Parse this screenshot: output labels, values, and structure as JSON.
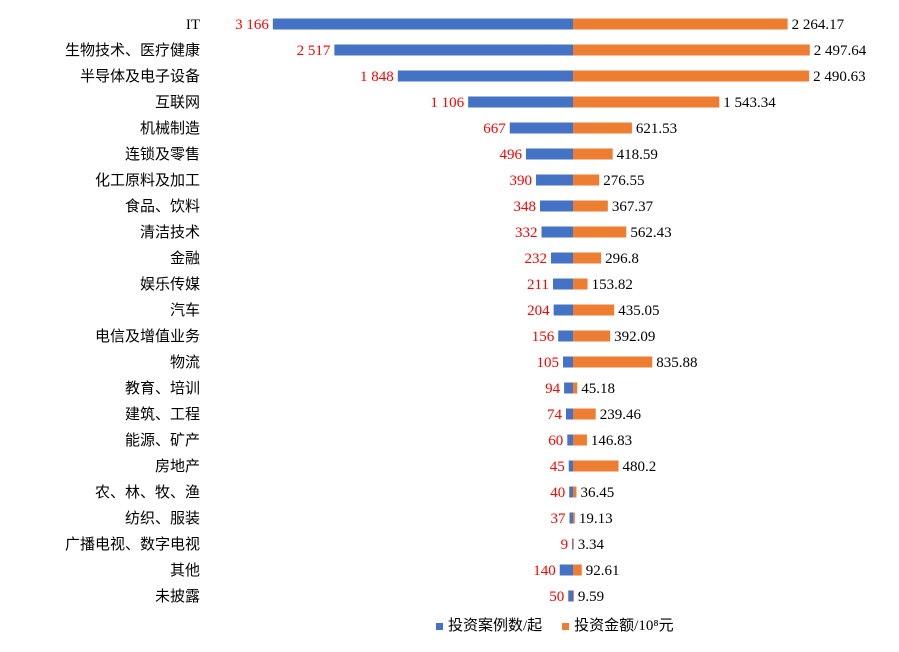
{
  "chart_data": {
    "type": "bar",
    "orientation": "horizontal-diverging",
    "categories": [
      "IT",
      "生物技术、医疗健康",
      "半导体及电子设备",
      "互联网",
      "机械制造",
      "连锁及零售",
      "化工原料及加工",
      "食品、饮料",
      "清洁技术",
      "金融",
      "娱乐传媒",
      "汽车",
      "电信及增值业务",
      "物流",
      "教育、培训",
      "建筑、工程",
      "能源、矿产",
      "房地产",
      "农、林、牧、渔",
      "纺织、服装",
      "广播电视、数字电视",
      "其他",
      "未披露"
    ],
    "series": [
      {
        "name": "投资案例数/起",
        "direction": "left",
        "color": "#4472C4",
        "label_color": "#FF0000",
        "values": [
          3166,
          2517,
          1848,
          1106,
          667,
          496,
          390,
          348,
          332,
          232,
          211,
          204,
          156,
          105,
          94,
          74,
          60,
          45,
          40,
          37,
          9,
          140,
          50
        ],
        "labels": [
          "3 166",
          "2 517",
          "1 848",
          "1 106",
          "667",
          "496",
          "390",
          "348",
          "332",
          "232",
          "211",
          "204",
          "156",
          "105",
          "94",
          "74",
          "60",
          "45",
          "40",
          "37",
          "9",
          "140",
          "50"
        ]
      },
      {
        "name": "投资金额/10⁸元",
        "direction": "right",
        "color": "#ED7D31",
        "label_color": "#000000",
        "values": [
          2264.17,
          2497.64,
          2490.63,
          1543.34,
          621.53,
          418.59,
          276.55,
          367.37,
          562.43,
          296.8,
          153.82,
          435.05,
          392.09,
          835.88,
          45.18,
          239.46,
          146.83,
          480.2,
          36.45,
          19.13,
          3.34,
          92.61,
          9.59
        ],
        "labels": [
          "2 264.17",
          "2 497.64",
          "2 490.63",
          "1 543.34",
          "621.53",
          "418.59",
          "276.55",
          "367.37",
          "562.43",
          "296.8",
          "153.82",
          "435.05",
          "392.09",
          "835.88",
          "45.18",
          "239.46",
          "146.83",
          "480.2",
          "36.45",
          "19.13",
          "3.34",
          "92.61",
          "9.59"
        ]
      }
    ],
    "legend": {
      "placement": "bottom",
      "items": [
        "投资案例数/起",
        "投资金额/10⁸元"
      ]
    },
    "grid": false
  }
}
